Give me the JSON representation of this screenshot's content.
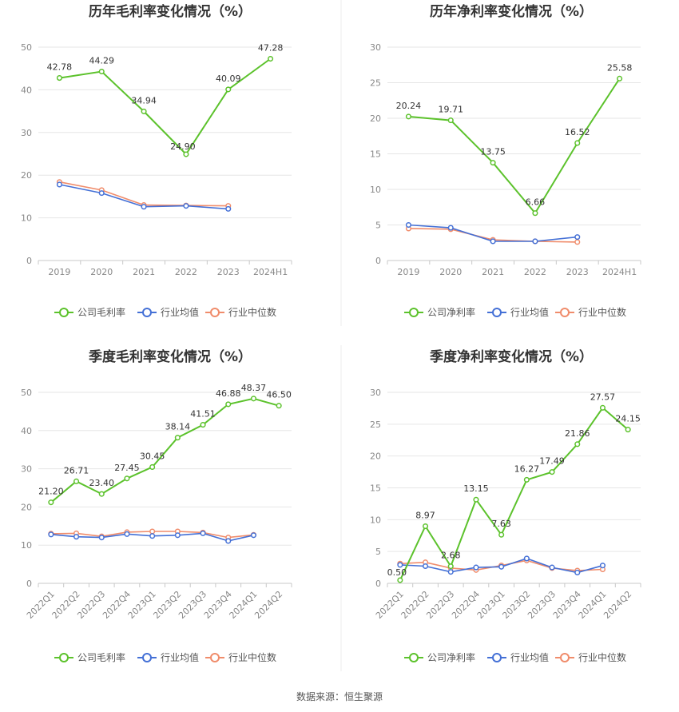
{
  "page": {
    "source": "数据来源：恒生聚源"
  },
  "colors": {
    "company": "#5cc22c",
    "avg": "#4470d6",
    "median": "#f08c6b",
    "grid": "#e6e6e6",
    "axis": "#c8c8c8"
  },
  "legend_icon": "circle-line-icon",
  "chart_data": [
    {
      "type": "line",
      "title": "历年毛利率变化情况（%）",
      "categories": [
        "2019",
        "2020",
        "2021",
        "2022",
        "2023",
        "2024H1"
      ],
      "ylim": [
        0,
        50
      ],
      "yticks": [
        0,
        10,
        20,
        30,
        40,
        50
      ],
      "rotate_x": false,
      "series": [
        {
          "name": "公司毛利率",
          "key": "company",
          "labels": true,
          "values": [
            42.78,
            44.29,
            34.94,
            24.9,
            40.09,
            47.28
          ]
        },
        {
          "name": "行业均值",
          "key": "avg",
          "labels": false,
          "values": [
            17.8,
            15.8,
            12.6,
            12.8,
            12.1,
            null
          ]
        },
        {
          "name": "行业中位数",
          "key": "median",
          "labels": false,
          "values": [
            18.4,
            16.5,
            13.0,
            12.9,
            12.8,
            null
          ]
        }
      ],
      "label_texts": [
        "42.78",
        "44.29",
        "34.94",
        "24.90",
        "40.09",
        "47.28"
      ],
      "label_pos": [
        "above",
        "above",
        "above",
        "left",
        "above",
        "above"
      ]
    },
    {
      "type": "line",
      "title": "历年净利率变化情况（%）",
      "categories": [
        "2019",
        "2020",
        "2021",
        "2022",
        "2023",
        "2024H1"
      ],
      "ylim": [
        0,
        30
      ],
      "yticks": [
        0,
        5,
        10,
        15,
        20,
        25,
        30
      ],
      "rotate_x": false,
      "series": [
        {
          "name": "公司净利率",
          "key": "company",
          "labels": true,
          "values": [
            20.24,
            19.71,
            13.75,
            6.66,
            16.52,
            25.58
          ]
        },
        {
          "name": "行业均值",
          "key": "avg",
          "labels": false,
          "values": [
            5.0,
            4.6,
            2.7,
            2.7,
            3.3,
            null
          ]
        },
        {
          "name": "行业中位数",
          "key": "median",
          "labels": false,
          "values": [
            4.5,
            4.4,
            2.9,
            2.7,
            2.6,
            null
          ]
        }
      ],
      "label_texts": [
        "20.24",
        "19.71",
        "13.75",
        "6.66",
        "16.52",
        "25.58"
      ],
      "label_pos": [
        "above",
        "above",
        "above",
        "above",
        "above",
        "above"
      ]
    },
    {
      "type": "line",
      "title": "季度毛利率变化情况（%）",
      "categories": [
        "2022Q1",
        "2022Q2",
        "2022Q3",
        "2022Q4",
        "2023Q1",
        "2023Q2",
        "2023Q3",
        "2023Q4",
        "2024Q1",
        "2024Q2"
      ],
      "ylim": [
        0,
        50
      ],
      "yticks": [
        0,
        10,
        20,
        30,
        40,
        50
      ],
      "rotate_x": true,
      "series": [
        {
          "name": "公司毛利率",
          "key": "company",
          "labels": true,
          "values": [
            21.2,
            26.71,
            23.4,
            27.45,
            30.45,
            38.14,
            41.51,
            46.88,
            48.37,
            46.5
          ]
        },
        {
          "name": "行业均值",
          "key": "avg",
          "labels": false,
          "values": [
            12.8,
            12.2,
            12.0,
            12.9,
            12.4,
            12.6,
            13.1,
            11.1,
            12.6,
            null
          ]
        },
        {
          "name": "行业中位数",
          "key": "median",
          "labels": false,
          "values": [
            13.0,
            13.1,
            12.3,
            13.4,
            13.6,
            13.6,
            13.3,
            12.0,
            12.7,
            null
          ]
        }
      ],
      "label_texts": [
        "21.20",
        "26.71",
        "23.40",
        "27.45",
        "30.45",
        "38.14",
        "41.51",
        "46.88",
        "48.37",
        "46.50"
      ],
      "label_pos": [
        "above",
        "above",
        "above",
        "above",
        "above",
        "above",
        "above",
        "above",
        "above",
        "above"
      ]
    },
    {
      "type": "line",
      "title": "季度净利率变化情况（%）",
      "categories": [
        "2022Q1",
        "2022Q2",
        "2022Q3",
        "2022Q4",
        "2023Q1",
        "2023Q2",
        "2023Q3",
        "2023Q4",
        "2024Q1",
        "2024Q2"
      ],
      "ylim": [
        0,
        30
      ],
      "yticks": [
        0,
        5,
        10,
        15,
        20,
        25,
        30
      ],
      "rotate_x": true,
      "series": [
        {
          "name": "公司净利率",
          "key": "company",
          "labels": true,
          "values": [
            0.5,
            8.97,
            2.68,
            13.15,
            7.63,
            16.27,
            17.49,
            21.86,
            27.57,
            24.15
          ]
        },
        {
          "name": "行业均值",
          "key": "avg",
          "labels": false,
          "values": [
            2.9,
            2.7,
            1.8,
            2.5,
            2.6,
            3.9,
            2.5,
            1.7,
            2.8,
            null
          ]
        },
        {
          "name": "行业中位数",
          "key": "median",
          "labels": false,
          "values": [
            3.1,
            3.3,
            2.4,
            2.1,
            2.8,
            3.6,
            2.4,
            2.0,
            2.2,
            null
          ]
        }
      ],
      "label_texts": [
        "0.50",
        "8.97",
        "2.68",
        "13.15",
        "7.63",
        "16.27",
        "17.49",
        "21.86",
        "27.57",
        "24.15"
      ],
      "label_pos": [
        "left",
        "above",
        "above",
        "above",
        "above",
        "above",
        "above",
        "above",
        "above",
        "above"
      ]
    }
  ]
}
